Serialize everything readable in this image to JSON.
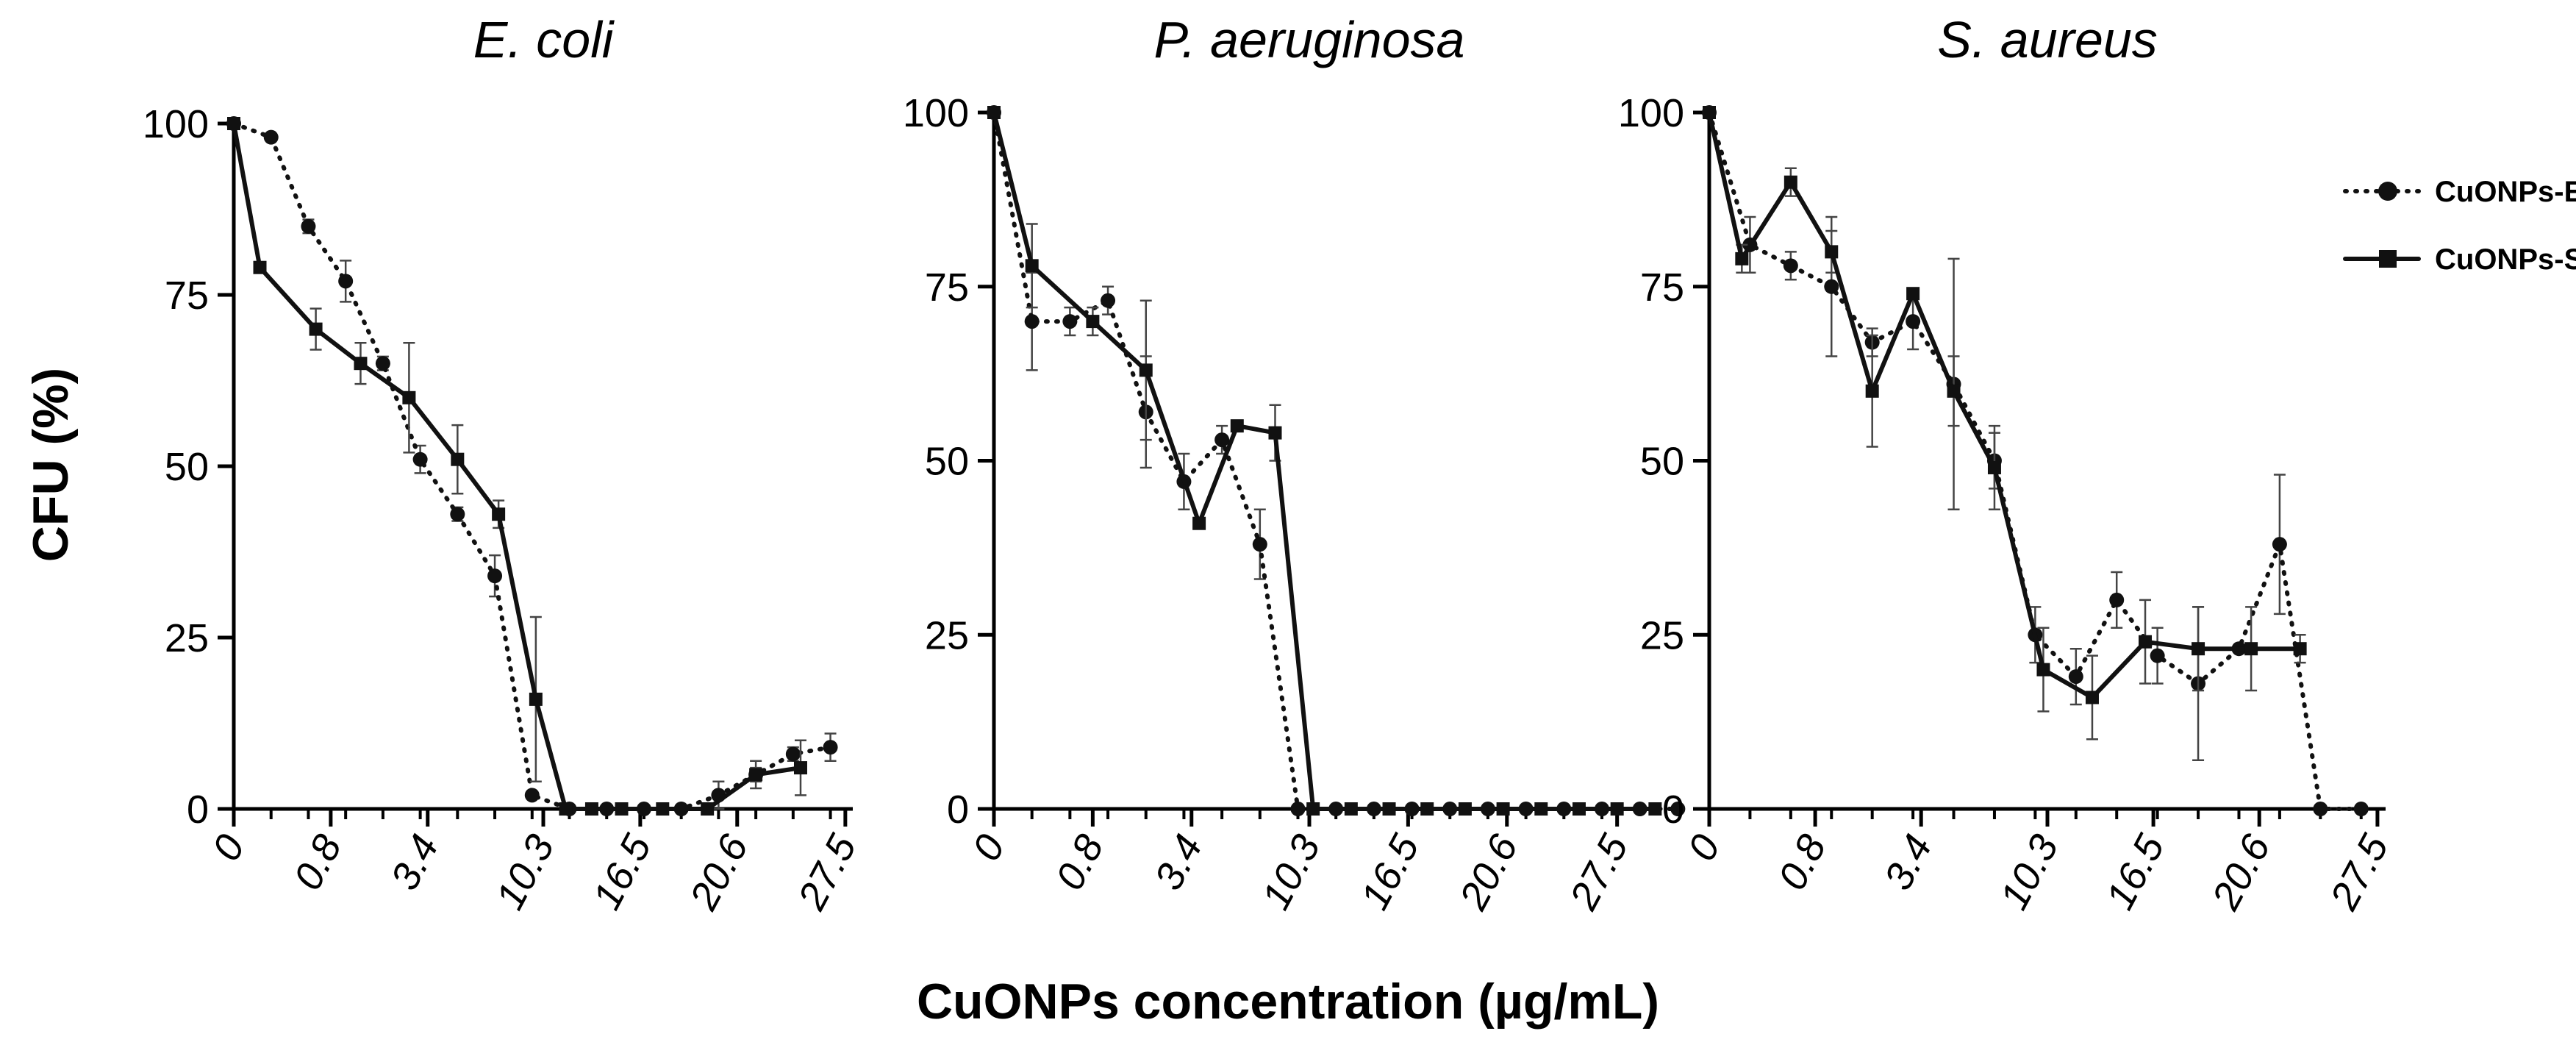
{
  "chart_data": {
    "type": "line",
    "xlabel": "CuONPs concentration (µg/mL)",
    "ylabel": "CFU (%)",
    "ylim": [
      0,
      100
    ],
    "yticks": [
      0,
      25,
      50,
      75,
      100
    ],
    "xticks": [
      "0",
      "0.8",
      "3.4",
      "10.3",
      "16.5",
      "20.6",
      "27.5"
    ],
    "legend_position": "top-right",
    "colors": {
      "line": "#111111",
      "axis": "#000000",
      "errorbar": "#444444"
    },
    "series_styles": [
      {
        "name": "CuONPs-E",
        "dash": "dotted",
        "marker": "circle"
      },
      {
        "name": "CuONPs-S",
        "dash": "solid",
        "marker": "square"
      }
    ],
    "panels": [
      {
        "title": "E. coli",
        "series": [
          {
            "name": "CuONPs-E",
            "x": [
              0,
              1,
              2,
              3,
              4,
              5,
              6,
              7,
              8,
              9,
              10,
              11,
              12,
              13,
              14,
              15,
              16
            ],
            "y": [
              100,
              98,
              85,
              77,
              65,
              51,
              43,
              34,
              2,
              0,
              0,
              0,
              0,
              2,
              5,
              8,
              9
            ],
            "err": [
              0,
              0,
              1,
              3,
              1,
              2,
              1,
              3,
              0,
              0,
              0,
              0,
              0,
              2,
              2,
              1,
              2
            ]
          },
          {
            "name": "CuONPs-S",
            "x": [
              0,
              0.7,
              2.2,
              3.4,
              4.7,
              6,
              7.1,
              8.1,
              8.9,
              9.6,
              10.4,
              11.5,
              12.7,
              14.0,
              15.2
            ],
            "y": [
              100,
              79,
              70,
              65,
              60,
              51,
              43,
              16,
              0,
              0,
              0,
              0,
              0,
              5,
              6
            ],
            "err": [
              0,
              0,
              3,
              3,
              8,
              5,
              2,
              12,
              0,
              0,
              0,
              0,
              0,
              1,
              4
            ]
          }
        ]
      },
      {
        "title": "P. aeruginosa",
        "series": [
          {
            "name": "CuONPs-E",
            "x": [
              0,
              1,
              2,
              3,
              4,
              5,
              6,
              7,
              8,
              9,
              10,
              11,
              12,
              13,
              14,
              15,
              16,
              17,
              18
            ],
            "y": [
              100,
              70,
              70,
              73,
              57,
              47,
              53,
              38,
              0,
              0,
              0,
              0,
              0,
              0,
              0,
              0,
              0,
              0,
              0
            ],
            "err": [
              0,
              7,
              2,
              2,
              8,
              4,
              2,
              5,
              0,
              0,
              0,
              0,
              0,
              0,
              0,
              0,
              0,
              0,
              0
            ]
          },
          {
            "name": "CuONPs-S",
            "x": [
              0,
              1,
              2.6,
              4,
              5.4,
              6.4,
              7.4,
              8.4,
              9.4,
              10.4,
              11.4,
              12.4,
              13.4,
              14.4,
              15.4,
              16.4,
              17.4
            ],
            "y": [
              100,
              78,
              70,
              63,
              41,
              55,
              54,
              0,
              0,
              0,
              0,
              0,
              0,
              0,
              0,
              0,
              0
            ],
            "err": [
              0,
              6,
              2,
              10,
              0,
              0,
              4,
              0,
              0,
              0,
              0,
              0,
              0,
              0,
              0,
              0,
              0
            ]
          }
        ]
      },
      {
        "title": "S. aureus",
        "series": [
          {
            "name": "CuONPs-E",
            "x": [
              0,
              1,
              2,
              3,
              4,
              5,
              6,
              7,
              8,
              9,
              10,
              11,
              12,
              13,
              14,
              15,
              16
            ],
            "y": [
              100,
              81,
              78,
              75,
              67,
              70,
              61,
              50,
              25,
              19,
              30,
              22,
              18,
              23,
              38,
              0,
              0
            ],
            "err": [
              0,
              4,
              2,
              10,
              2,
              4,
              18,
              4,
              4,
              4,
              4,
              4,
              11,
              0,
              10,
              0,
              0
            ]
          },
          {
            "name": "CuONPs-S",
            "x": [
              0,
              0.8,
              2,
              3,
              4,
              5,
              6,
              7,
              8.2,
              9.4,
              10.7,
              12,
              13.3,
              14.5
            ],
            "y": [
              100,
              79,
              90,
              80,
              60,
              74,
              60,
              49,
              20,
              16,
              24,
              23,
              23,
              23
            ],
            "err": [
              0,
              2,
              2,
              3,
              8,
              0,
              5,
              6,
              6,
              6,
              6,
              6,
              6,
              2
            ]
          }
        ]
      }
    ]
  }
}
